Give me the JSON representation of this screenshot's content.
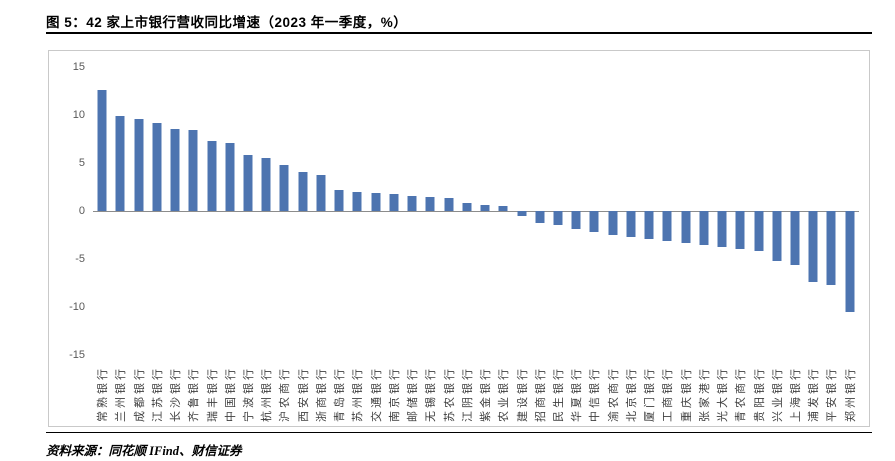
{
  "page": {
    "title": "图 5：42 家上市银行营收同比增速（2023 年一季度，%）",
    "source": "资料来源：同花顺 IFind、财信证券"
  },
  "colors": {
    "bar": "#4d74b0",
    "zero_axis": "#8c8c8c",
    "frame_border": "#c9c9c9",
    "tick_label": "#595959"
  },
  "chart_data": {
    "type": "bar",
    "title": "42 家上市银行营收同比增速（2023 年一季度，%）",
    "categories": [
      "常熟银行",
      "兰州银行",
      "成都银行",
      "江苏银行",
      "长沙银行",
      "齐鲁银行",
      "瑞丰银行",
      "中国银行",
      "宁波银行",
      "杭州银行",
      "沪农商行",
      "西安银行",
      "浙商银行",
      "青岛银行",
      "苏州银行",
      "交通银行",
      "南京银行",
      "邮储银行",
      "无锡银行",
      "苏农银行",
      "江阴银行",
      "紫金银行",
      "农业银行",
      "建设银行",
      "招商银行",
      "民生银行",
      "华夏银行",
      "中信银行",
      "渝农商行",
      "北京银行",
      "厦门银行",
      "工商银行",
      "重庆银行",
      "张家港行",
      "光大银行",
      "青农商行",
      "贵阳银行",
      "兴业银行",
      "上海银行",
      "浦发银行",
      "平安银行",
      "郑州银行"
    ],
    "values": [
      12.6,
      9.9,
      9.6,
      9.2,
      8.5,
      8.4,
      7.3,
      7.1,
      5.8,
      5.5,
      4.8,
      4.1,
      3.7,
      2.2,
      2.0,
      1.9,
      1.8,
      1.6,
      1.5,
      1.4,
      0.8,
      0.6,
      0.5,
      -0.5,
      -1.2,
      -1.5,
      -1.9,
      -2.2,
      -2.5,
      -2.7,
      -2.9,
      -3.1,
      -3.3,
      -3.5,
      -3.8,
      -4.0,
      -4.2,
      -5.2,
      -5.6,
      -7.4,
      -7.7,
      -10.5
    ],
    "xlabel": "",
    "ylabel": "",
    "ylim": [
      -15,
      15
    ],
    "yticks": [
      15,
      10,
      5,
      0,
      -5,
      -10,
      -15
    ],
    "grid": false,
    "legend": false,
    "unit": "%"
  }
}
